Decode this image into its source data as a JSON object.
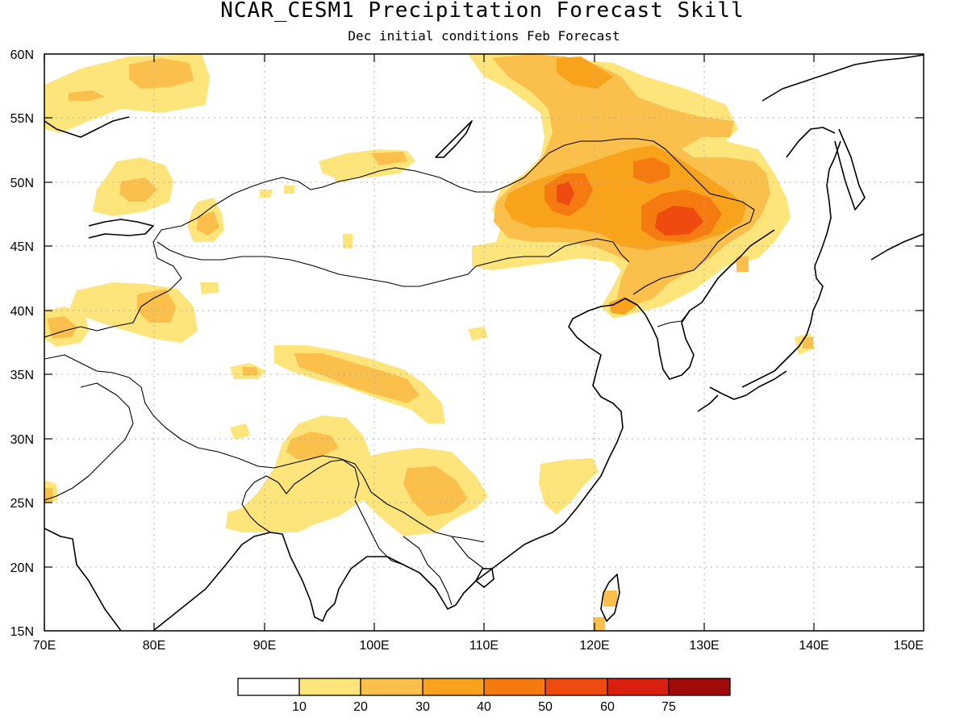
{
  "title": "NCAR_CESM1 Precipitation Forecast Skill",
  "subtitle": "Dec initial conditions  Feb Forecast",
  "map": {
    "lon_range": [
      70,
      150
    ],
    "lat_range": [
      15,
      60
    ],
    "x_ticks": [
      "70E",
      "80E",
      "90E",
      "100E",
      "110E",
      "120E",
      "130E",
      "140E",
      "150E"
    ],
    "y_ticks": [
      "60N",
      "55N",
      "50N",
      "45N",
      "40N",
      "35N",
      "30N",
      "25N",
      "20N",
      "15N"
    ]
  },
  "colorbar": {
    "labels": [
      "10",
      "20",
      "30",
      "40",
      "50",
      "60",
      "75"
    ],
    "colors": [
      "#ffffff",
      "#fde57c",
      "#fbc04c",
      "#f9a21c",
      "#f57a10",
      "#ef4a10",
      "#d9200e",
      "#a10a0a"
    ]
  }
}
